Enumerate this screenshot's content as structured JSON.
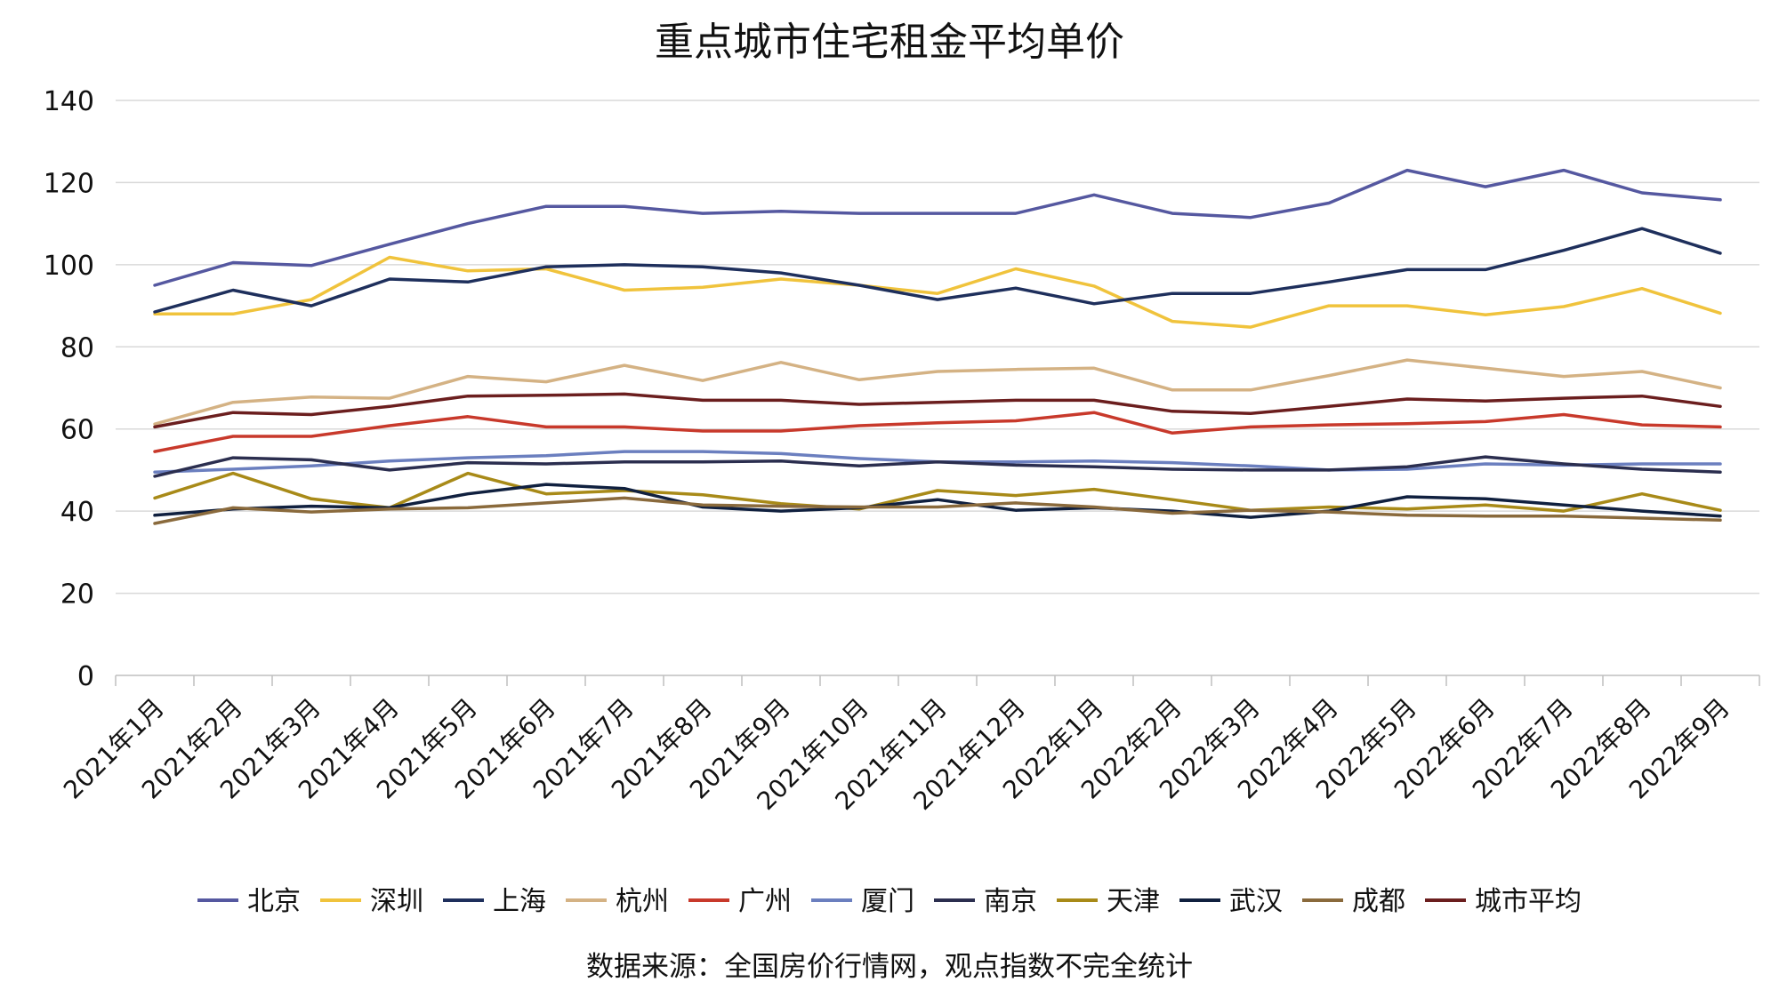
{
  "chart_data": {
    "type": "line",
    "title": "重点城市住宅租金平均单价",
    "source_note": "数据来源：全国房价行情网，观点指数不完全统计",
    "ylim": [
      0,
      140
    ],
    "yticks": [
      0,
      20,
      40,
      60,
      80,
      100,
      120,
      140
    ],
    "grid": true,
    "legend_position": "bottom",
    "categories": [
      "2021年1月",
      "2021年2月",
      "2021年3月",
      "2021年4月",
      "2021年5月",
      "2021年6月",
      "2021年7月",
      "2021年8月",
      "2021年9月",
      "2021年10月",
      "2021年11月",
      "2021年12月",
      "2022年1月",
      "2022年2月",
      "2022年3月",
      "2022年4月",
      "2022年5月",
      "2022年6月",
      "2022年7月",
      "2022年8月",
      "2022年9月"
    ],
    "series": [
      {
        "name": "北京",
        "color": "#5558a0",
        "values": [
          95,
          100.5,
          99.8,
          105,
          110,
          114.2,
          114.2,
          112.5,
          113,
          112.5,
          112.5,
          112.5,
          117,
          112.5,
          111.5,
          115,
          123,
          119,
          123,
          117.5,
          115.8
        ]
      },
      {
        "name": "深圳",
        "color": "#f0c33c",
        "values": [
          88,
          88,
          91.5,
          101.8,
          98.5,
          99,
          93.8,
          94.5,
          96.5,
          95,
          93,
          99,
          94.8,
          86.2,
          84.8,
          90,
          90,
          87.8,
          89.8,
          94.2,
          88.2
        ]
      },
      {
        "name": "上海",
        "color": "#1e2f5c",
        "values": [
          88.5,
          93.8,
          90,
          96.5,
          95.8,
          99.5,
          100,
          99.5,
          98,
          95,
          91.5,
          94.3,
          90.5,
          93,
          93,
          95.8,
          98.8,
          98.8,
          103.5,
          108.8,
          102.8
        ]
      },
      {
        "name": "杭州",
        "color": "#d4b284",
        "values": [
          61.2,
          66.5,
          67.8,
          67.5,
          72.8,
          71.5,
          75.5,
          71.8,
          76.2,
          72,
          74,
          74.5,
          74.8,
          69.5,
          69.5,
          73,
          76.8,
          74.8,
          72.8,
          74,
          70
        ]
      },
      {
        "name": "广州",
        "color": "#c8392b",
        "values": [
          54.5,
          58.2,
          58.2,
          60.8,
          63,
          60.5,
          60.5,
          59.5,
          59.5,
          60.8,
          61.5,
          62,
          64,
          59,
          60.5,
          61,
          61.3,
          61.8,
          63.5,
          61,
          60.5
        ]
      },
      {
        "name": "厦门",
        "color": "#6b7fbf",
        "values": [
          49.5,
          50.2,
          51,
          52.2,
          53,
          53.5,
          54.5,
          54.5,
          54,
          52.8,
          52,
          52,
          52.2,
          51.8,
          51,
          50,
          50.2,
          51.5,
          51.2,
          51.5,
          51.5
        ]
      },
      {
        "name": "南京",
        "color": "#2b2e4f",
        "values": [
          48.5,
          53,
          52.5,
          50,
          51.8,
          51.5,
          52,
          52,
          52.2,
          51,
          52,
          51.2,
          50.8,
          50.2,
          50,
          50,
          50.8,
          53.2,
          51.5,
          50.2,
          49.5
        ]
      },
      {
        "name": "天津",
        "color": "#a88a18",
        "values": [
          43.2,
          49.2,
          43,
          40.8,
          49.2,
          44.2,
          45,
          44,
          41.8,
          40.5,
          45,
          43.8,
          45.3,
          42.8,
          40.2,
          41,
          40.5,
          41.5,
          40,
          44.2,
          40.2
        ]
      },
      {
        "name": "武汉",
        "color": "#10203f",
        "values": [
          39,
          40.5,
          41.2,
          40.8,
          44.2,
          46.5,
          45.5,
          41,
          40,
          40.8,
          42.8,
          40.2,
          40.8,
          40,
          38.5,
          40,
          43.5,
          43,
          41.5,
          40,
          38.8
        ]
      },
      {
        "name": "成都",
        "color": "#8a6a3c",
        "values": [
          37,
          40.8,
          39.8,
          40.5,
          40.8,
          42,
          43.2,
          41.5,
          41.2,
          41,
          41,
          42,
          41,
          39.5,
          40.2,
          39.8,
          39,
          38.8,
          38.8,
          38.3,
          37.8
        ]
      },
      {
        "name": "城市平均",
        "color": "#6b1e1e",
        "values": [
          60.5,
          64,
          63.5,
          65.5,
          68,
          68.2,
          68.5,
          67,
          67,
          66,
          66.5,
          67,
          67,
          64.3,
          63.8,
          65.5,
          67.3,
          66.8,
          67.5,
          68,
          65.5
        ]
      }
    ]
  }
}
